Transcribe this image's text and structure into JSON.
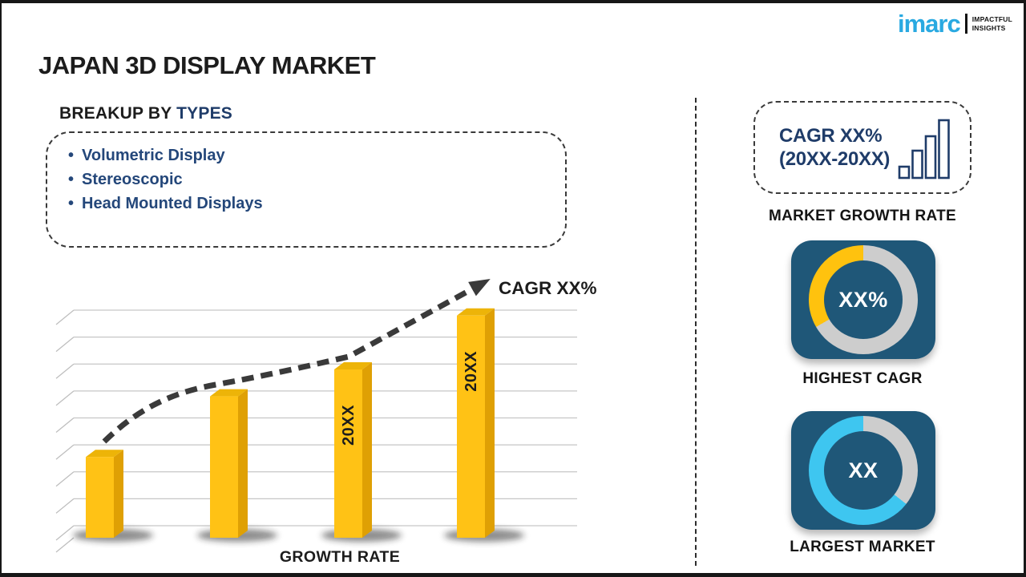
{
  "page": {
    "title": "JAPAN 3D DISPLAY MARKET"
  },
  "logo": {
    "brand": "imarc",
    "tagline": [
      "IMPACTFUL",
      "INSIGHTS"
    ],
    "brand_color": "#29A9E1"
  },
  "breakup": {
    "heading_prefix": "BREAKUP BY",
    "heading_highlight": "TYPES",
    "items": [
      "Volumetric Display",
      "Stereoscopic",
      "Head Mounted Displays"
    ]
  },
  "chart_data": {
    "type": "bar",
    "style": "3d-columns with dashed trend arrow",
    "title": "",
    "xlabel": "GROWTH RATE",
    "ylabel": "",
    "categories": [
      "",
      "",
      "20XX",
      "20XX"
    ],
    "values": [
      36,
      63,
      75,
      99
    ],
    "ylim": [
      0,
      100
    ],
    "grid": true,
    "gridline_count": 9,
    "trend_label": "CAGR XX%",
    "bar_color": "#FFC215",
    "bar_side_color": "#DFA004",
    "bar_top_color": "#EDB408",
    "trend_color": "#3a3a3a"
  },
  "sidebar": {
    "growth_box": {
      "line1": "CAGR XX%",
      "line2": "(20XX-20XX)",
      "caption": "MARKET GROWTH RATE",
      "icon": "bar-chart-icon",
      "icon_bar_heights": [
        14,
        34,
        52,
        72
      ],
      "icon_color": "#1F3C69"
    },
    "highest_cagr": {
      "value": "XX%",
      "caption": "HIGHEST CAGR",
      "segments": [
        {
          "color": "#CDCDCD",
          "start": 0,
          "end": 240
        },
        {
          "color": "#FFC20E",
          "start": 240,
          "end": 360
        }
      ]
    },
    "largest_market": {
      "value": "XX",
      "caption": "LARGEST MARKET",
      "segments": [
        {
          "color": "#CDCDCD",
          "start": 0,
          "end": 128
        },
        {
          "color": "#3EC6F0",
          "start": 128,
          "end": 360
        }
      ]
    },
    "card_color": "#1F5778"
  }
}
